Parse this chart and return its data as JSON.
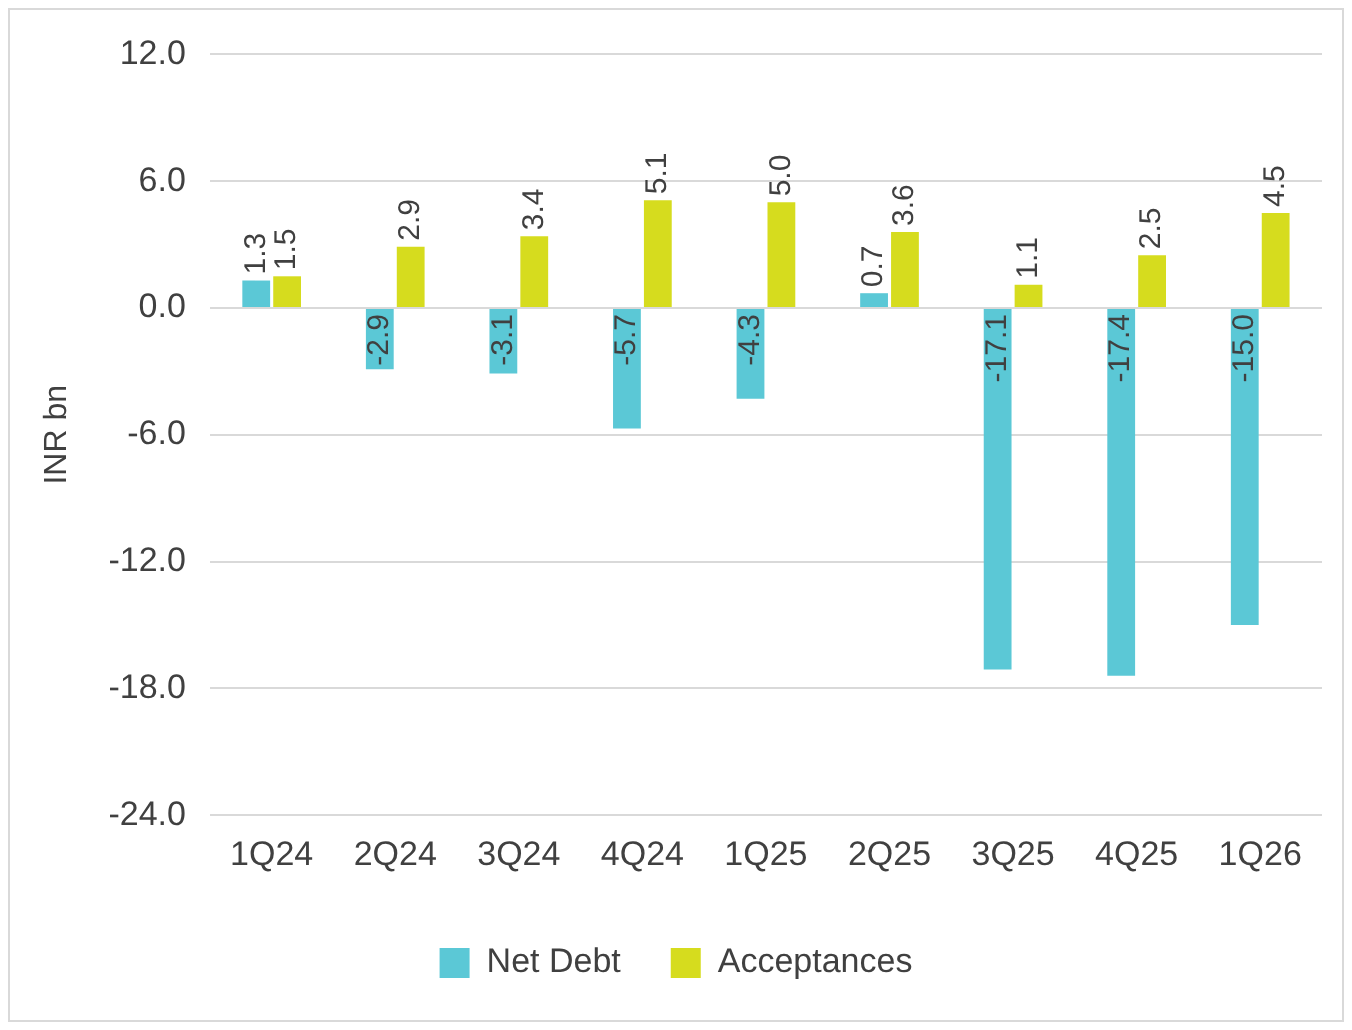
{
  "chart_data": {
    "type": "bar",
    "ylabel": "INR bn",
    "categories": [
      "1Q24",
      "2Q24",
      "3Q24",
      "4Q24",
      "1Q25",
      "2Q25",
      "3Q25",
      "4Q25",
      "1Q26"
    ],
    "series": [
      {
        "name": "Net Debt",
        "color": "#5bc8d6",
        "values": [
          1.3,
          -2.9,
          -3.1,
          -5.7,
          -4.3,
          0.7,
          -17.1,
          -17.4,
          -15.0
        ],
        "value_labels": [
          "1.3",
          "-2.9",
          "-3.1",
          "-5.7",
          "-4.3",
          "0.7",
          "-17.1",
          "-17.4",
          "-15.0"
        ]
      },
      {
        "name": "Acceptances",
        "color": "#d6dc1e",
        "values": [
          1.5,
          2.9,
          3.4,
          5.1,
          5.0,
          3.6,
          1.1,
          2.5,
          4.5
        ],
        "value_labels": [
          "1.5",
          "2.9",
          "3.4",
          "5.1",
          "5.0",
          "3.6",
          "1.1",
          "2.5",
          "4.5"
        ]
      }
    ],
    "ylim": [
      -24,
      12
    ],
    "yticks": [
      {
        "value": -24,
        "label": "-24.0"
      },
      {
        "value": -18,
        "label": "-18.0"
      },
      {
        "value": -12,
        "label": "-12.0"
      },
      {
        "value": -6,
        "label": "-6.0"
      },
      {
        "value": 0,
        "label": "0.0"
      },
      {
        "value": 6,
        "label": "6.0"
      },
      {
        "value": 12,
        "label": "12.0"
      }
    ],
    "grid": "y",
    "legend": "bottom"
  }
}
